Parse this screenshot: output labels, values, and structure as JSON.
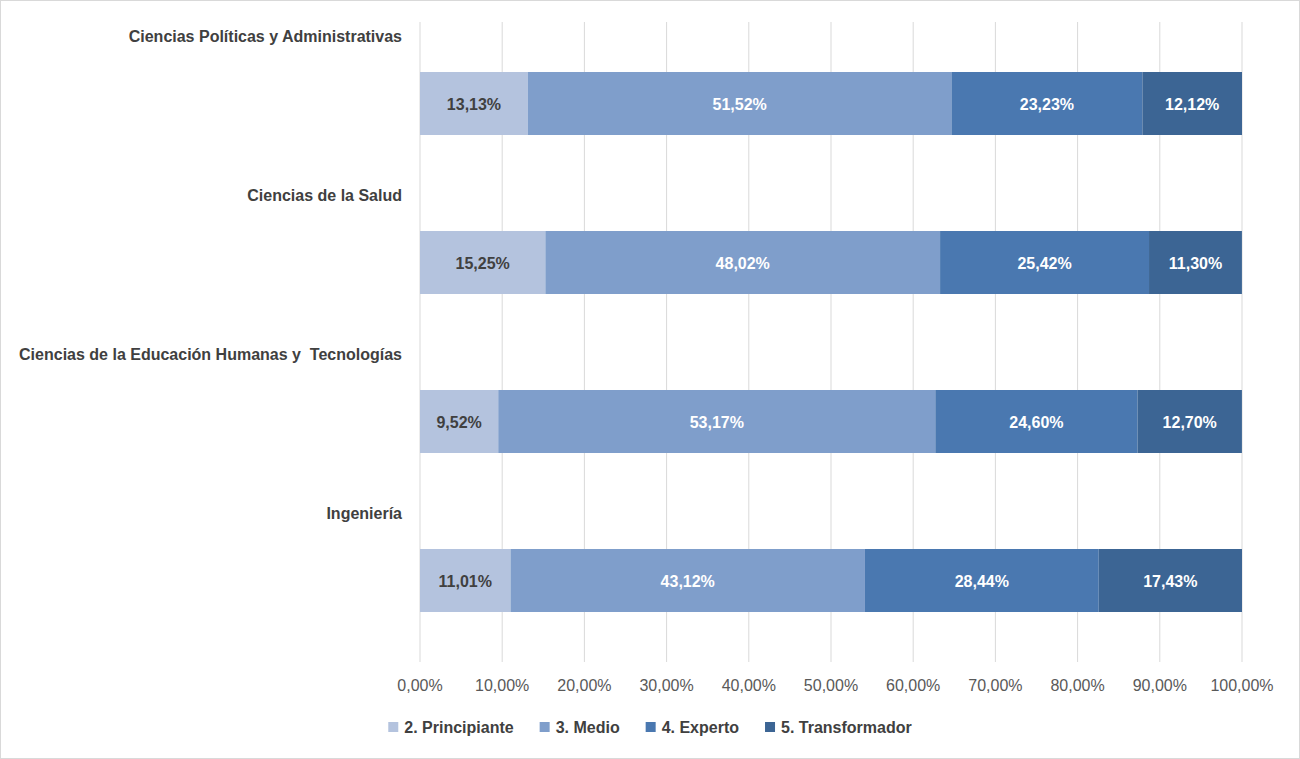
{
  "chart_data": {
    "type": "bar",
    "orientation": "horizontal",
    "stacked": true,
    "data_labels": true,
    "grid": true,
    "legend": "bottom",
    "categories": [
      "Ciencias Políticas y Administrativas",
      "Ciencias de la Salud",
      "Ciencias de la Educación Humanas y  Tecnologías",
      "Ingeniería"
    ],
    "xlim": [
      0,
      100
    ],
    "xticks": [
      {
        "value": 0,
        "label": "0,00%"
      },
      {
        "value": 10,
        "label": "10,00%"
      },
      {
        "value": 20,
        "label": "20,00%"
      },
      {
        "value": 30,
        "label": "30,00%"
      },
      {
        "value": 40,
        "label": "40,00%"
      },
      {
        "value": 50,
        "label": "50,00%"
      },
      {
        "value": 60,
        "label": "60,00%"
      },
      {
        "value": 70,
        "label": "70,00%"
      },
      {
        "value": 80,
        "label": "80,00%"
      },
      {
        "value": 90,
        "label": "90,00%"
      },
      {
        "value": 100,
        "label": "100,00%"
      }
    ],
    "series": [
      {
        "name": "2. Principiante",
        "color": "#b4c3de",
        "values": [
          13.13,
          15.25,
          9.52,
          11.01
        ],
        "value_labels": [
          "13,13%",
          "15,25%",
          "9,52%",
          "11,01%"
        ]
      },
      {
        "name": "3. Medio",
        "color": "#7f9ecb",
        "values": [
          51.52,
          48.02,
          53.17,
          43.12
        ],
        "value_labels": [
          "51,52%",
          "48,02%",
          "53,17%",
          "43,12%"
        ]
      },
      {
        "name": "4. Experto",
        "color": "#4a78b0",
        "values": [
          23.23,
          25.42,
          24.6,
          28.44
        ],
        "value_labels": [
          "23,23%",
          "25,42%",
          "24,60%",
          "28,44%"
        ]
      },
      {
        "name": "5. Transformador",
        "color": "#3c6594",
        "values": [
          12.12,
          11.3,
          12.7,
          17.43
        ],
        "value_labels": [
          "12,12%",
          "11,30%",
          "12,70%",
          "17,43%"
        ]
      }
    ]
  }
}
